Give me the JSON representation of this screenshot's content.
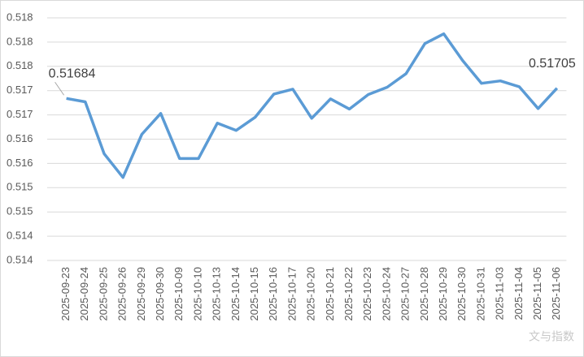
{
  "chart_data": {
    "type": "line",
    "categories": [
      "2025-09-23",
      "2025-09-24",
      "2025-09-25",
      "2025-09-26",
      "2025-09-29",
      "2025-09-30",
      "2025-10-09",
      "2025-10-10",
      "2025-10-13",
      "2025-10-14",
      "2025-10-15",
      "2025-10-16",
      "2025-10-17",
      "2025-10-20",
      "2025-10-21",
      "2025-10-22",
      "2025-10-23",
      "2025-10-24",
      "2025-10-27",
      "2025-10-28",
      "2025-10-29",
      "2025-10-30",
      "2025-10-31",
      "2025-11-03",
      "2025-11-04",
      "2025-11-05",
      "2025-11-06"
    ],
    "values": [
      0.51684,
      0.51677,
      0.5157,
      0.51521,
      0.5161,
      0.51653,
      0.5156,
      0.5156,
      0.51633,
      0.51618,
      0.51645,
      0.51693,
      0.51703,
      0.51643,
      0.51683,
      0.51662,
      0.51692,
      0.51707,
      0.51735,
      0.51797,
      0.51817,
      0.51762,
      0.51715,
      0.5172,
      0.51708,
      0.51663,
      0.51705
    ],
    "value_labels": [
      "0.51684",
      null,
      null,
      null,
      null,
      null,
      null,
      null,
      null,
      null,
      null,
      null,
      null,
      null,
      null,
      null,
      null,
      null,
      null,
      null,
      null,
      null,
      null,
      null,
      null,
      null,
      "0.51705"
    ],
    "color": "#5b9bd5",
    "ylim": [
      0.5135,
      0.5185
    ],
    "yticks": [
      {
        "value": 0.5135,
        "label": "0.514"
      },
      {
        "value": 0.514,
        "label": "0.514"
      },
      {
        "value": 0.5145,
        "label": "0.515"
      },
      {
        "value": 0.515,
        "label": "0.515"
      },
      {
        "value": 0.5155,
        "label": "0.516"
      },
      {
        "value": 0.516,
        "label": "0.516"
      },
      {
        "value": 0.5165,
        "label": "0.517"
      },
      {
        "value": 0.517,
        "label": "0.517"
      },
      {
        "value": 0.5175,
        "label": "0.518"
      },
      {
        "value": 0.518,
        "label": "0.518"
      },
      {
        "value": 0.5185,
        "label": "0.518"
      }
    ],
    "grid": true,
    "watermark": "文与指数"
  }
}
